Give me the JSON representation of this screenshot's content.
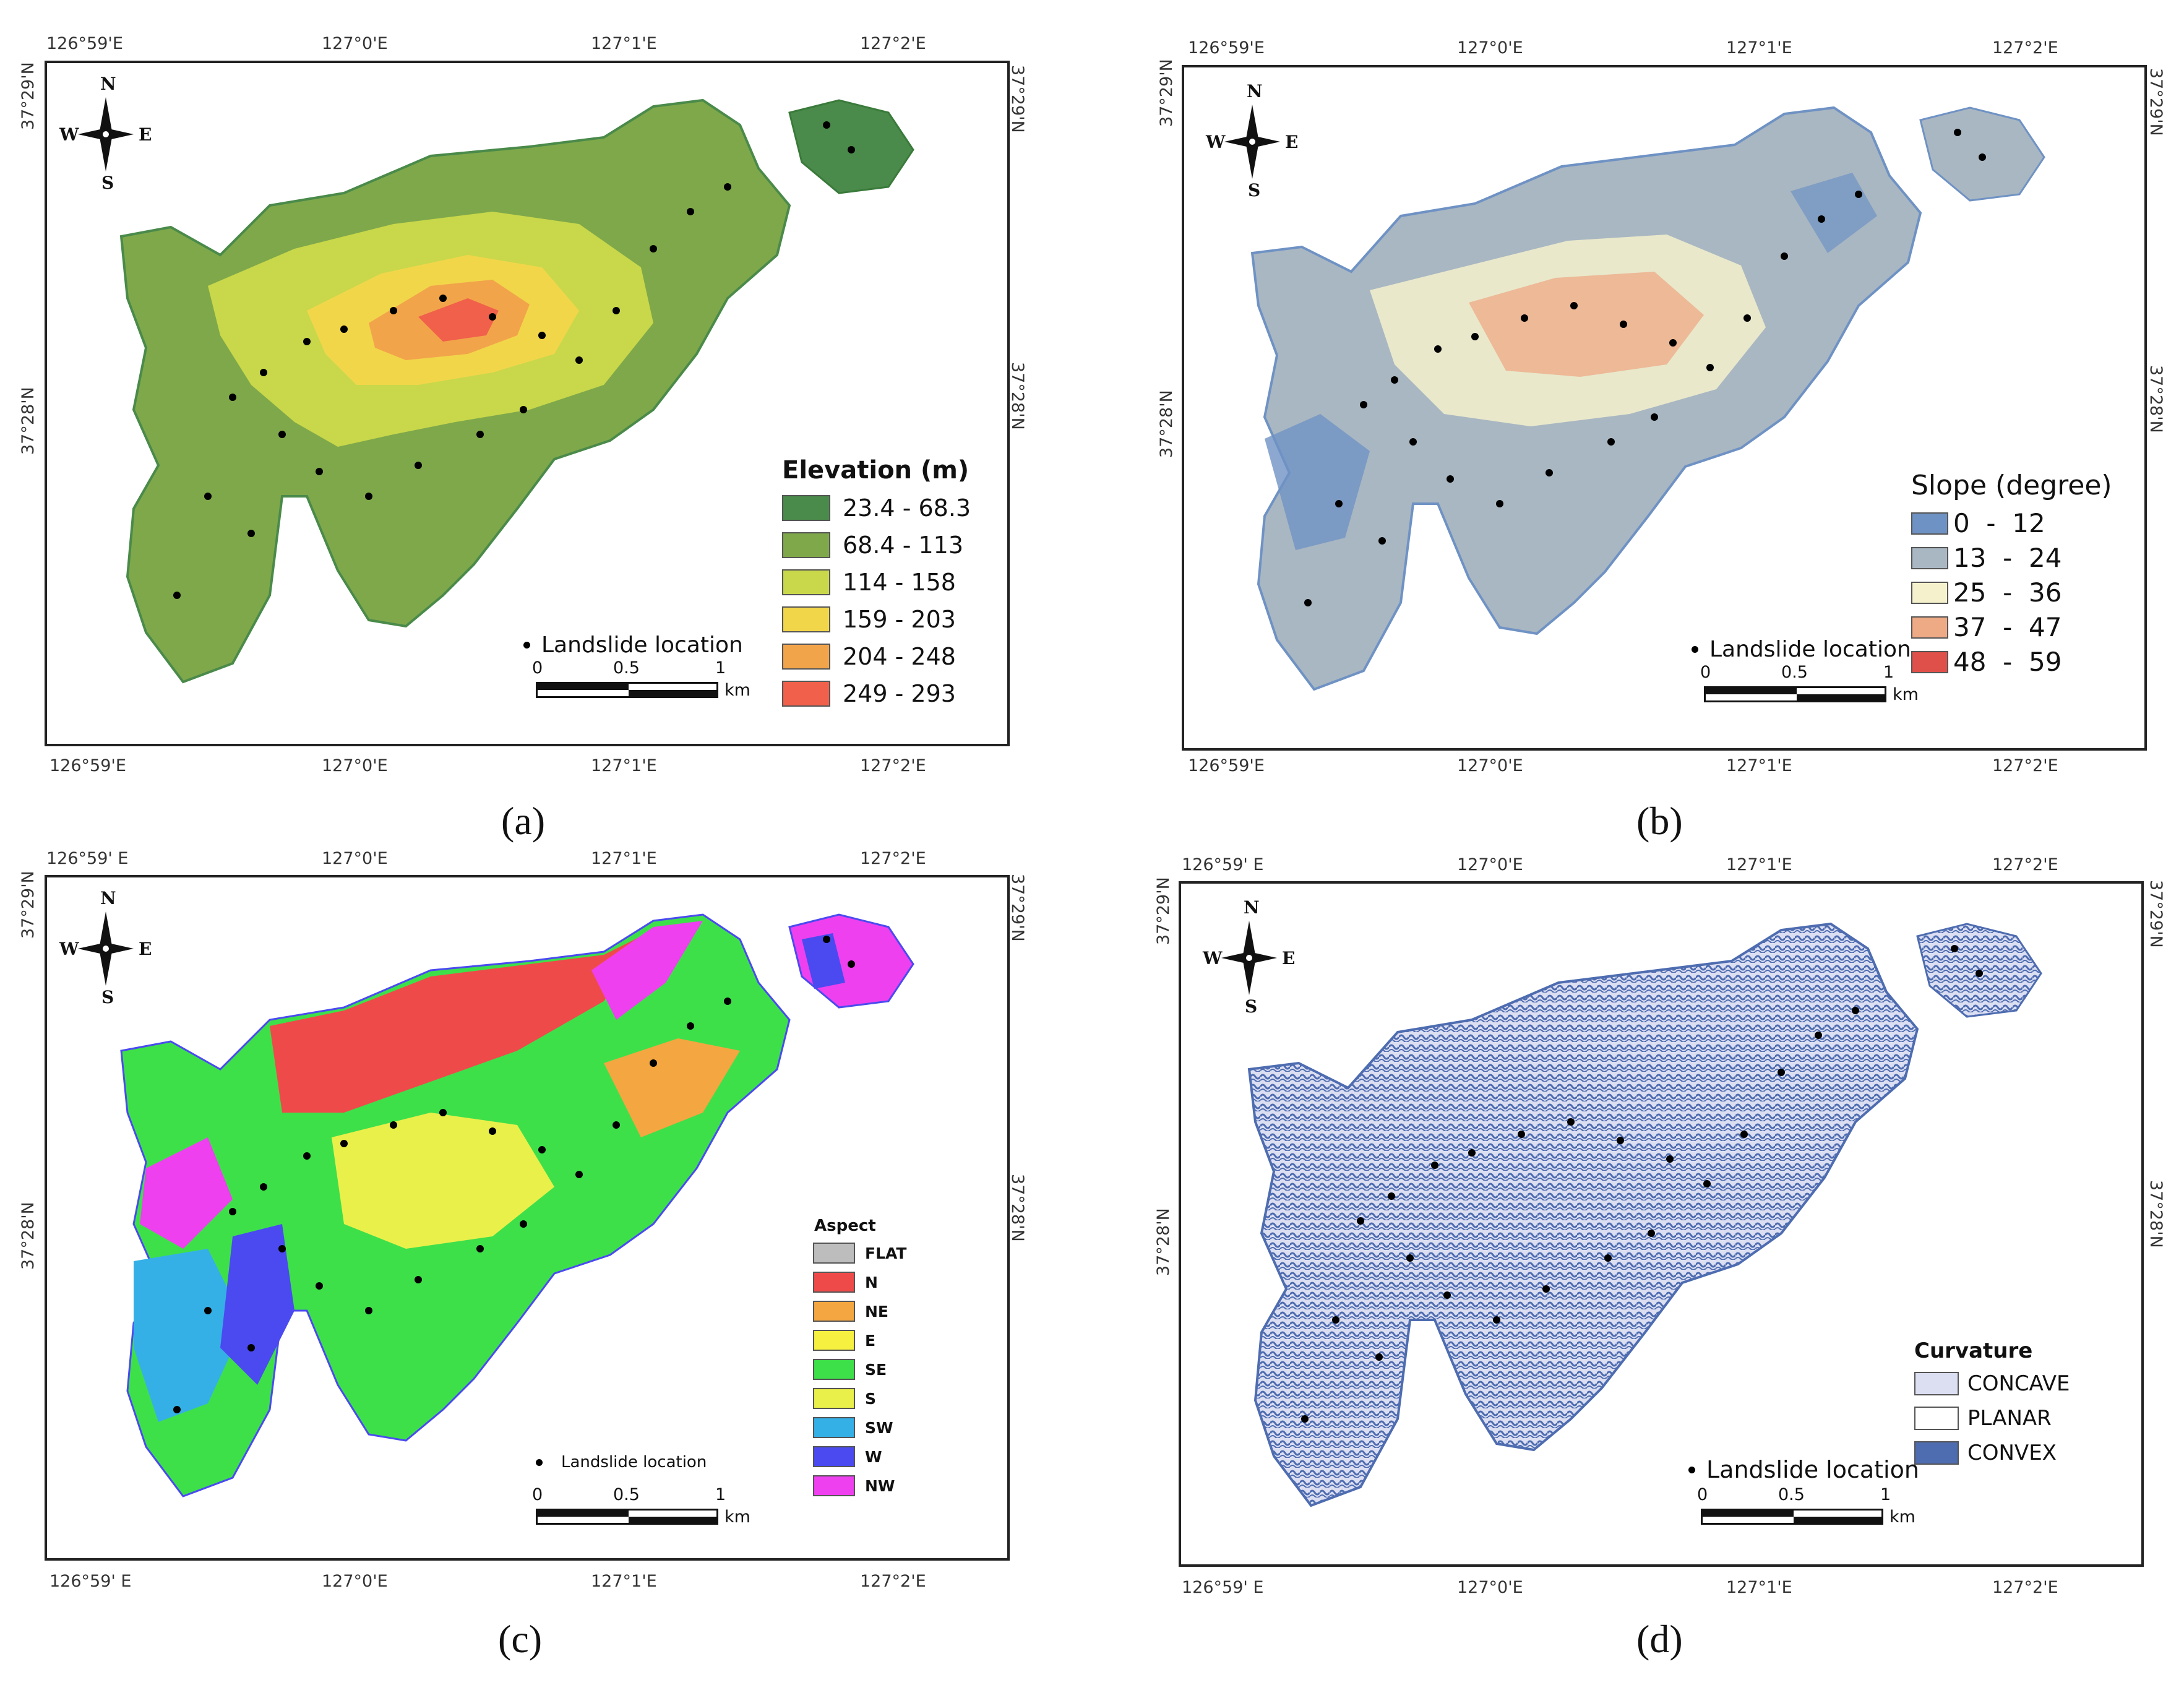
{
  "axes": {
    "lon_ticks": [
      "126°59'E",
      "127°0'E",
      "127°1'E",
      "127°2'E"
    ],
    "lon_ticks_alt": [
      "126°59' E",
      "127°0'E",
      "127°1'E",
      "127°2'E"
    ],
    "lat_ticks": [
      "37°29'N",
      "37°28'N"
    ]
  },
  "compass": {
    "n": "N",
    "s": "S",
    "e": "E",
    "w": "W"
  },
  "scale_bar": {
    "labels": [
      "0",
      "0.5",
      "1"
    ],
    "unit": "km"
  },
  "landslide_label": "Landslide location",
  "panels": [
    {
      "caption": "(a)",
      "legend_title": "Elevation (m)",
      "legend": [
        {
          "label": "23.4 - 68.3",
          "color": "#4a8a4a"
        },
        {
          "label": "68.4 - 113",
          "color": "#7fa84a"
        },
        {
          "label": "114 - 158",
          "color": "#c8d84a"
        },
        {
          "label": "159 - 203",
          "color": "#f2d64a"
        },
        {
          "label": "204 - 248",
          "color": "#f2a44a"
        },
        {
          "label": "249 - 293",
          "color": "#f0604a"
        }
      ]
    },
    {
      "caption": "(b)",
      "legend_title": "Slope (degree)",
      "legend": [
        {
          "label": "0  -  12",
          "color": "#6f92c4"
        },
        {
          "label": "13  -  24",
          "color": "#a9b7c2"
        },
        {
          "label": "25  -  36",
          "color": "#f4f1cc"
        },
        {
          "label": "37  -  47",
          "color": "#eea985"
        },
        {
          "label": "48  -  59",
          "color": "#e0504a"
        }
      ]
    },
    {
      "caption": "(c)",
      "legend_title": "Aspect",
      "legend": [
        {
          "label": "FLAT",
          "color": "#bdbdbd"
        },
        {
          "label": "N",
          "color": "#ef4a4a"
        },
        {
          "label": "NE",
          "color": "#f4a640"
        },
        {
          "label": "E",
          "color": "#f6f040"
        },
        {
          "label": "SE",
          "color": "#3ee04a"
        },
        {
          "label": "S",
          "color": "#eaf04a"
        },
        {
          "label": "SW",
          "color": "#35b0e6"
        },
        {
          "label": "W",
          "color": "#4a4af0"
        },
        {
          "label": "NW",
          "color": "#ee40ee"
        }
      ]
    },
    {
      "caption": "(d)",
      "legend_title": "Curvature",
      "legend": [
        {
          "label": "CONCAVE",
          "color": "#dcdff2"
        },
        {
          "label": "PLANAR",
          "color": "#ffffff"
        },
        {
          "label": "CONVEX",
          "color": "#4e6cb0"
        }
      ]
    }
  ]
}
